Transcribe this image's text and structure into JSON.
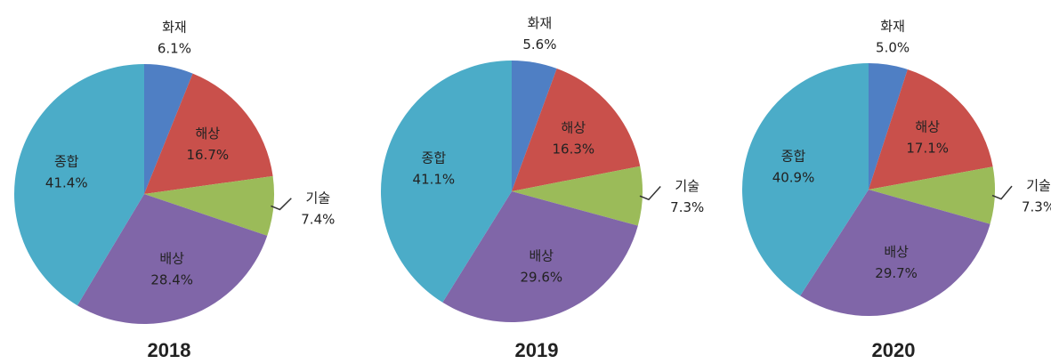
{
  "chart_data": [
    {
      "type": "pie",
      "title": "2018",
      "categories": [
        "화재",
        "해상",
        "기술",
        "배상",
        "종합"
      ],
      "values": [
        6.1,
        16.7,
        7.4,
        28.4,
        41.4
      ],
      "value_labels": [
        "6.1%",
        "16.7%",
        "7.4%",
        "28.4%",
        "41.4%"
      ],
      "colors": [
        "#4f7fc4",
        "#c9504b",
        "#9bbb59",
        "#8066a8",
        "#4bacc8"
      ]
    },
    {
      "type": "pie",
      "title": "2019",
      "categories": [
        "화재",
        "해상",
        "기술",
        "배상",
        "종합"
      ],
      "values": [
        5.6,
        16.3,
        7.3,
        29.6,
        41.1
      ],
      "value_labels": [
        "5.6%",
        "16.3%",
        "7.3%",
        "29.6%",
        "41.1%"
      ],
      "colors": [
        "#4f7fc4",
        "#c9504b",
        "#9bbb59",
        "#8066a8",
        "#4bacc8"
      ]
    },
    {
      "type": "pie",
      "title": "2020",
      "categories": [
        "화재",
        "해상",
        "기술",
        "배상",
        "종합"
      ],
      "values": [
        5.0,
        17.1,
        7.3,
        29.7,
        40.9
      ],
      "value_labels": [
        "5.0%",
        "17.1%",
        "7.3%",
        "29.7%",
        "40.9%"
      ],
      "colors": [
        "#4f7fc4",
        "#c9504b",
        "#9bbb59",
        "#8066a8",
        "#4bacc8"
      ]
    }
  ]
}
